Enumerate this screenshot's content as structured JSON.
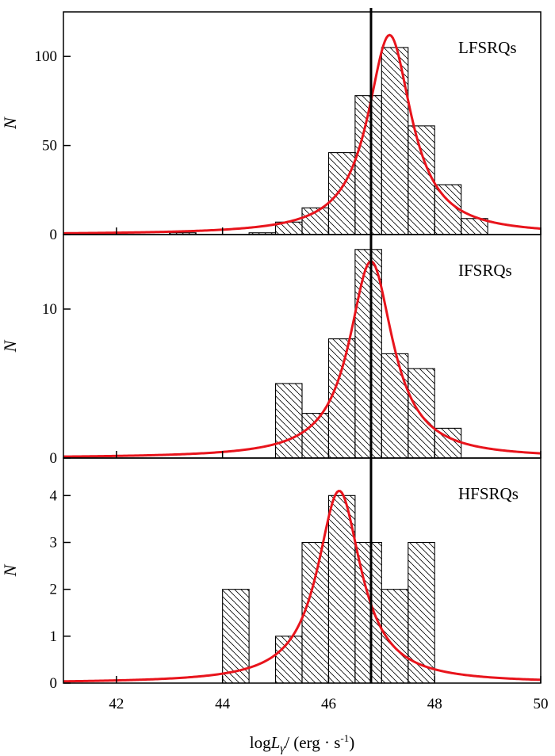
{
  "chart_data": {
    "type": "bar",
    "xlabel": "log L_γ / (erg · s⁻¹)",
    "xlabel_parts": {
      "log": "log",
      "var": "L",
      "sub": "γ",
      "unit": "/ (erg · s",
      "exp": "-1",
      "close": ")"
    },
    "xlim": [
      41,
      50
    ],
    "xticks": [
      42,
      44,
      46,
      48,
      50
    ],
    "vline_x": 46.8,
    "bin_width": 0.5,
    "fit_color": "#e8141c",
    "panels": [
      {
        "label": "LFSRQs",
        "ylabel": "N",
        "ylim": [
          0,
          125
        ],
        "yticks": [
          0,
          50,
          100
        ],
        "bins": [
          {
            "x": 43.0,
            "count": 1
          },
          {
            "x": 44.5,
            "count": 1
          },
          {
            "x": 45.0,
            "count": 7
          },
          {
            "x": 45.5,
            "count": 15
          },
          {
            "x": 46.0,
            "count": 46
          },
          {
            "x": 46.5,
            "count": 78
          },
          {
            "x": 47.0,
            "count": 105
          },
          {
            "x": 47.5,
            "count": 61
          },
          {
            "x": 48.0,
            "count": 28
          },
          {
            "x": 48.5,
            "count": 9
          }
        ],
        "fit": {
          "peak_x": 47.15,
          "peak_y": 112,
          "half_width": 0.5
        }
      },
      {
        "label": "IFSRQs",
        "ylabel": "N",
        "ylim": [
          0,
          15
        ],
        "yticks": [
          0,
          10
        ],
        "bins": [
          {
            "x": 45.0,
            "count": 5
          },
          {
            "x": 45.5,
            "count": 3
          },
          {
            "x": 46.0,
            "count": 8
          },
          {
            "x": 46.5,
            "count": 14
          },
          {
            "x": 47.0,
            "count": 7
          },
          {
            "x": 47.5,
            "count": 6
          },
          {
            "x": 48.0,
            "count": 2
          }
        ],
        "fit": {
          "peak_x": 46.8,
          "peak_y": 13.2,
          "half_width": 0.5
        }
      },
      {
        "label": "HFSRQs",
        "ylabel": "N",
        "ylim": [
          0,
          4.8
        ],
        "yticks": [
          0,
          1,
          2,
          3,
          4
        ],
        "bins": [
          {
            "x": 44.0,
            "count": 2
          },
          {
            "x": 45.0,
            "count": 1
          },
          {
            "x": 45.5,
            "count": 3
          },
          {
            "x": 46.0,
            "count": 4
          },
          {
            "x": 46.5,
            "count": 3
          },
          {
            "x": 47.0,
            "count": 2
          },
          {
            "x": 47.5,
            "count": 3
          }
        ],
        "fit": {
          "peak_x": 46.2,
          "peak_y": 4.1,
          "half_width": 0.5
        }
      }
    ]
  }
}
